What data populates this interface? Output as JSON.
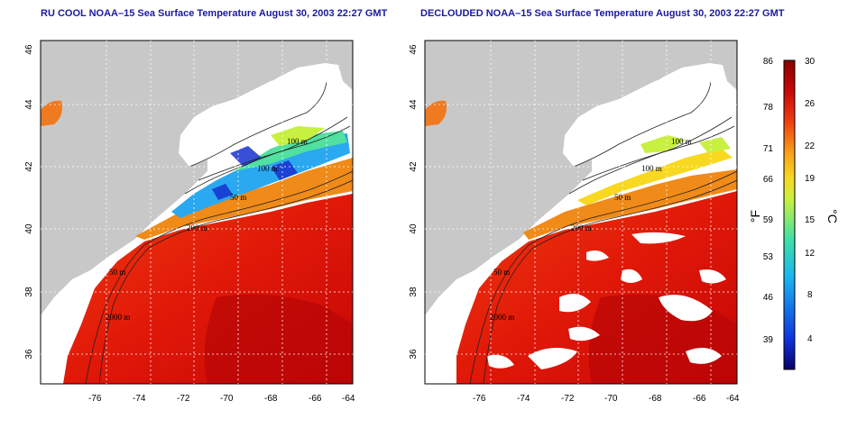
{
  "panels": [
    {
      "title": "RU COOL NOAA–15 Sea Surface Temperature August 30, 2003 22:27 GMT",
      "x_ticks": [
        "-76",
        "-74",
        "-72",
        "-70",
        "-68",
        "-66",
        "-64"
      ],
      "y_ticks": [
        "46",
        "44",
        "42",
        "40",
        "38",
        "36"
      ],
      "contour_labels": [
        "100 m",
        "100 m",
        "50 m",
        "200 m",
        "50 m",
        "2000 m"
      ]
    },
    {
      "title": "DECLOUDED NOAA–15 Sea Surface Temperature August 30, 2003 22:27 GMT",
      "x_ticks": [
        "-76",
        "-74",
        "-72",
        "-70",
        "-68",
        "-66",
        "-64"
      ],
      "y_ticks": [
        "46",
        "44",
        "42",
        "40",
        "38",
        "36"
      ],
      "contour_labels": [
        "100 m",
        "100 m",
        "50 m",
        "200 m",
        "50 m",
        "2000 m"
      ]
    }
  ],
  "colorbar": {
    "unit_f": "°F",
    "unit_c": "°C",
    "f_ticks": [
      "86",
      "78",
      "71",
      "66",
      "59",
      "53",
      "46",
      "39"
    ],
    "c_ticks": [
      "30",
      "26",
      "22",
      "19",
      "15",
      "12",
      "8",
      "4"
    ],
    "colors": [
      "#08006a",
      "#1034e0",
      "#19b6f0",
      "#3fe0a8",
      "#c8f040",
      "#f8d820",
      "#f8a018",
      "#f04010",
      "#c80808",
      "#8a0000"
    ]
  },
  "colors": {
    "land": "#c8c8c8",
    "cloud": "#ffffff",
    "title": "#1a1aa0"
  }
}
